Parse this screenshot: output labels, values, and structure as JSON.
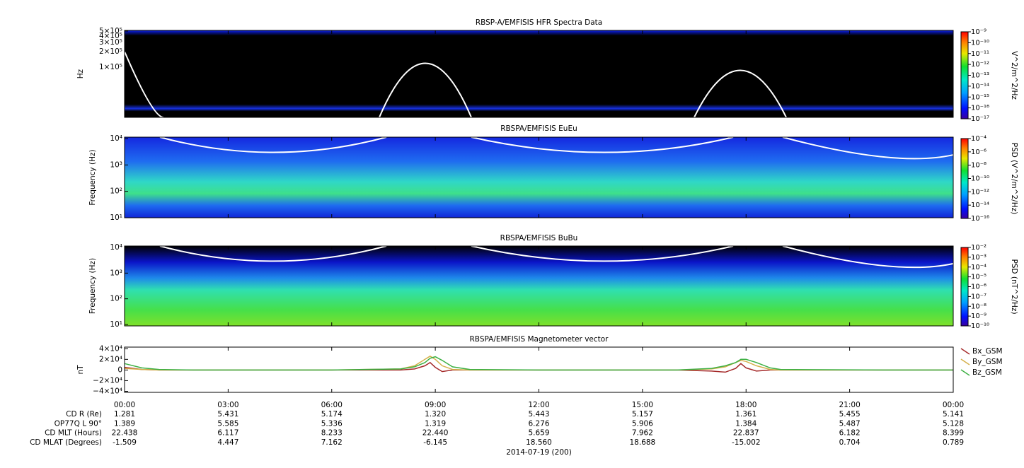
{
  "chart_data": [
    {
      "type": "spectrogram",
      "title": "RBSP-A/EMFISIS  HFR Spectra Data",
      "ylabel": "Hz",
      "log_y": true,
      "ylim": [
        10600,
        515000
      ],
      "yticks": [
        {
          "value": 500000,
          "label": "5×10⁵"
        },
        {
          "value": 400000,
          "label": "4×10⁵"
        },
        {
          "value": 300000,
          "label": "3×10⁵"
        },
        {
          "value": 200000,
          "label": "2×10⁵"
        },
        {
          "value": 100000,
          "label": "1×10⁵"
        }
      ],
      "colorbar_label": "V^2/m^2/Hz",
      "clim": [
        1e-17,
        1e-09
      ],
      "cticks": [
        {
          "value": 1e-09,
          "label": "10⁻⁹"
        },
        {
          "value": 1e-10,
          "label": "10⁻¹⁰"
        },
        {
          "value": 1e-11,
          "label": "10⁻¹¹"
        },
        {
          "value": 1e-12,
          "label": "10⁻¹²"
        },
        {
          "value": 1e-13,
          "label": "10⁻¹³"
        },
        {
          "value": 1e-14,
          "label": "10⁻¹⁴"
        },
        {
          "value": 1e-15,
          "label": "10⁻¹⁵"
        },
        {
          "value": 1e-16,
          "label": "10⁻¹⁶"
        },
        {
          "value": 1e-17,
          "label": "10⁻¹⁷"
        }
      ]
    },
    {
      "type": "spectrogram",
      "title": "RBSPA/EMFISIS  EuEu",
      "ylabel": "Frequency (Hz)",
      "log_y": true,
      "ylim": [
        10,
        11300
      ],
      "yticks": [
        {
          "value": 10,
          "label": "10¹"
        },
        {
          "value": 100,
          "label": "10²"
        },
        {
          "value": 1000,
          "label": "10³"
        },
        {
          "value": 10000,
          "label": "10⁴"
        }
      ],
      "colorbar_label": "PSD (V^2/m^2/Hz)",
      "clim": [
        1e-16,
        0.0001
      ],
      "cticks": [
        {
          "value": 0.0001,
          "label": "10⁻⁴"
        },
        {
          "value": 1e-06,
          "label": "10⁻⁶"
        },
        {
          "value": 1e-08,
          "label": "10⁻⁸"
        },
        {
          "value": 1e-10,
          "label": "10⁻¹⁰"
        },
        {
          "value": 1e-12,
          "label": "10⁻¹²"
        },
        {
          "value": 1e-14,
          "label": "10⁻¹⁴"
        },
        {
          "value": 1e-16,
          "label": "10⁻¹⁶"
        }
      ]
    },
    {
      "type": "spectrogram",
      "title": "RBSPA/EMFISIS  BuBu",
      "ylabel": "Frequency (Hz)",
      "log_y": true,
      "ylim": [
        8.8,
        11350
      ],
      "yticks": [
        {
          "value": 10,
          "label": "10¹"
        },
        {
          "value": 100,
          "label": "10²"
        },
        {
          "value": 1000,
          "label": "10³"
        },
        {
          "value": 10000,
          "label": "10⁴"
        }
      ],
      "colorbar_label": "PSD (nT^2/Hz)",
      "clim": [
        1e-10,
        0.01
      ],
      "cticks": [
        {
          "value": 0.01,
          "label": "10⁻²"
        },
        {
          "value": 0.001,
          "label": "10⁻³"
        },
        {
          "value": 0.0001,
          "label": "10⁻⁴"
        },
        {
          "value": 1e-05,
          "label": "10⁻⁵"
        },
        {
          "value": 1e-06,
          "label": "10⁻⁶"
        },
        {
          "value": 1e-07,
          "label": "10⁻⁷"
        },
        {
          "value": 1e-08,
          "label": "10⁻⁸"
        },
        {
          "value": 1e-09,
          "label": "10⁻⁹"
        },
        {
          "value": 1e-10,
          "label": "10⁻¹⁰"
        }
      ]
    },
    {
      "type": "line",
      "title": "RBSPA/EMFISIS  Magnetometer vector",
      "ylabel": "nT",
      "ylim": [
        -42000,
        43000
      ],
      "yticks": [
        {
          "value": 40000,
          "label": "4×10⁴"
        },
        {
          "value": 20000,
          "label": "2×10⁴"
        },
        0,
        {
          "value": -20000,
          "label": "−2×10⁴"
        },
        {
          "value": -40000,
          "label": "−4×10⁴"
        }
      ],
      "xlim": [
        0,
        24
      ],
      "xticks": [
        {
          "value": 0,
          "label": "00:00"
        },
        {
          "value": 3,
          "label": "03:00"
        },
        {
          "value": 6,
          "label": "06:00"
        },
        {
          "value": 9,
          "label": "09:00"
        },
        {
          "value": 12,
          "label": "12:00"
        },
        {
          "value": 15,
          "label": "15:00"
        },
        {
          "value": 18,
          "label": "18:00"
        },
        {
          "value": 21,
          "label": "21:00"
        },
        {
          "value": 24,
          "label": "00:00"
        }
      ],
      "x": [
        0,
        0.5,
        1,
        2,
        6,
        8,
        8.4,
        8.7,
        8.85,
        9,
        9.2,
        9.5,
        10,
        12,
        16,
        17,
        17.4,
        17.7,
        17.85,
        18,
        18.3,
        18.7,
        19,
        22,
        24
      ],
      "series": [
        {
          "name": "Bx_GSM",
          "color": "#a52a2a",
          "values": [
            5000,
            1000,
            0,
            0,
            0,
            0,
            2000,
            8000,
            14000,
            5000,
            -3000,
            0,
            0,
            0,
            0,
            -2000,
            -4000,
            3000,
            12000,
            4000,
            -2000,
            0,
            0,
            0,
            0
          ]
        },
        {
          "name": "By_GSM",
          "color": "#d4b04a",
          "values": [
            3000,
            1000,
            0,
            0,
            0,
            2000,
            8000,
            20000,
            26000,
            20000,
            8000,
            1000,
            0,
            0,
            0,
            2000,
            6000,
            14000,
            18000,
            16000,
            8000,
            1000,
            0,
            0,
            0
          ]
        },
        {
          "name": "Bz_GSM",
          "color": "#3cb043",
          "values": [
            12000,
            4000,
            1000,
            0,
            0,
            2000,
            6000,
            14000,
            22000,
            25000,
            18000,
            6000,
            1000,
            0,
            0,
            3000,
            8000,
            14000,
            20000,
            20000,
            14000,
            4000,
            1000,
            0,
            0
          ]
        }
      ]
    }
  ],
  "ephemeris": {
    "rows": [
      {
        "label": "CD R (Re)",
        "values": [
          "1.281",
          "5.431",
          "5.174",
          "1.320",
          "5.443",
          "5.157",
          "1.361",
          "5.455",
          "5.141"
        ]
      },
      {
        "label": "OP77Q L 90°",
        "values": [
          "1.389",
          "5.585",
          "5.336",
          "1.319",
          "6.276",
          "5.906",
          "1.384",
          "5.487",
          "5.128"
        ]
      },
      {
        "label": "CD MLT (Hours)",
        "values": [
          "22.438",
          "6.117",
          "8.233",
          "22.440",
          "5.659",
          "7.962",
          "22.837",
          "6.182",
          "8.399"
        ]
      },
      {
        "label": "CD MLAT (Degrees)",
        "values": [
          "-1.509",
          "4.447",
          "7.162",
          "-6.145",
          "18.560",
          "18.688",
          "-15.002",
          "0.704",
          "0.789"
        ]
      }
    ],
    "date": "2014-07-19 (200)"
  }
}
